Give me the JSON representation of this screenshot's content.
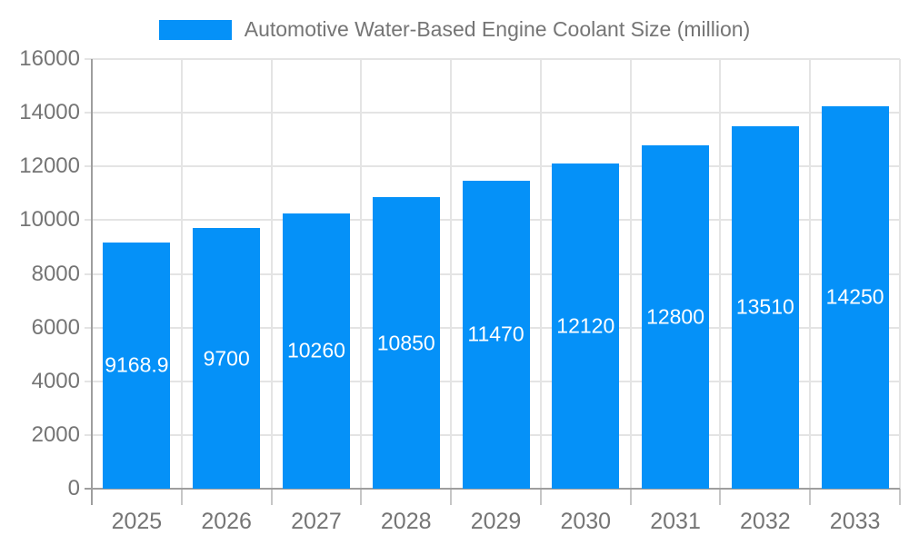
{
  "chart_data": {
    "type": "bar",
    "title": "Automotive Water-Based Engine Coolant Size (million)",
    "categories": [
      "2025",
      "2026",
      "2027",
      "2028",
      "2029",
      "2030",
      "2031",
      "2032",
      "2033"
    ],
    "values": [
      9168.9,
      9700,
      10260,
      10850,
      11470,
      12120,
      12800,
      13510,
      14250
    ],
    "value_labels": [
      "9168.9",
      "9700",
      "10260",
      "10850",
      "11470",
      "12120",
      "12800",
      "13510",
      "14250"
    ],
    "xlabel": "",
    "ylabel": "",
    "ylim": [
      0,
      16000
    ],
    "yticks": [
      0,
      2000,
      4000,
      6000,
      8000,
      10000,
      12000,
      14000,
      16000
    ],
    "ytick_labels": [
      "0",
      "2000",
      "4000",
      "6000",
      "8000",
      "10000",
      "12000",
      "14000",
      "16000"
    ],
    "grid": true,
    "legend_position": "top-center",
    "colors": {
      "bar": "#0591f8",
      "value_label": "#ffffff",
      "axis_text": "#757575",
      "axis_line": "#9e9e9e",
      "gridline": "#e4e4e4",
      "tick": "#c6c6c6",
      "background": "#ffffff"
    }
  }
}
